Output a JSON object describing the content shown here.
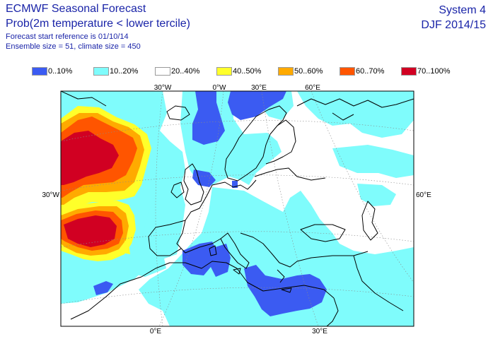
{
  "header": {
    "title": "ECMWF Seasonal Forecast",
    "subtitle": "Prob(2m temperature < lower tercile)",
    "start_reference": "Forecast start reference is 01/10/14",
    "ensemble": "Ensemble size = 51, climate size = 450",
    "system": "System 4",
    "season": "DJF 2014/15"
  },
  "legend": [
    {
      "label": "0..10%",
      "color": "#3b5bf2"
    },
    {
      "label": "10..20%",
      "color": "#7ffcfc"
    },
    {
      "label": "20..40%",
      "color": "#ffffff"
    },
    {
      "label": "40..50%",
      "color": "#ffff2a"
    },
    {
      "label": "50..60%",
      "color": "#ffaa00"
    },
    {
      "label": "60..70%",
      "color": "#ff5500"
    },
    {
      "label": "70..100%",
      "color": "#d10022"
    }
  ],
  "grid_labels": {
    "top": [
      "30°W",
      "0°W",
      "30°E",
      "60°E"
    ],
    "left": [
      "30°W"
    ],
    "right": [
      "60°E"
    ],
    "bottom": [
      "0°E",
      "30°E"
    ]
  }
}
